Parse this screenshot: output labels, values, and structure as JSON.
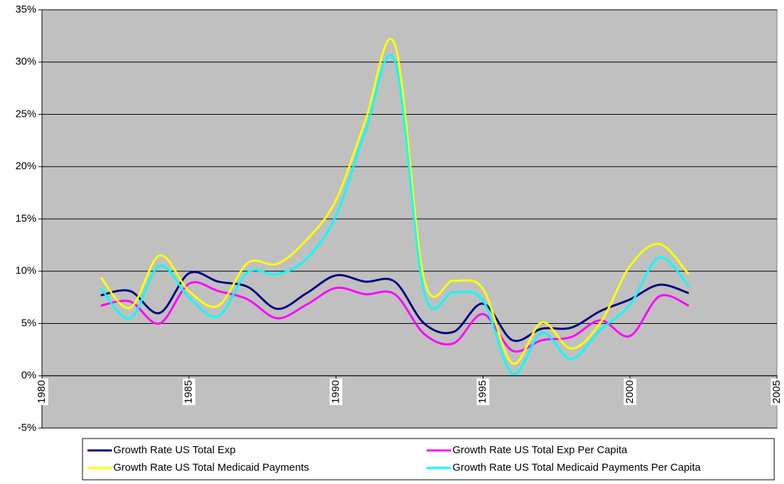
{
  "chart_data": {
    "type": "line",
    "x": [
      1982,
      1983,
      1984,
      1985,
      1986,
      1987,
      1988,
      1989,
      1990,
      1991,
      1992,
      1993,
      1994,
      1995,
      1996,
      1997,
      1998,
      1999,
      2000,
      2001,
      2002
    ],
    "series": [
      {
        "name": "Growth Rate US Total Exp",
        "color": "#000080",
        "values": [
          7.7,
          8.1,
          6.0,
          9.8,
          9.0,
          8.5,
          6.4,
          7.9,
          9.6,
          9.0,
          9.0,
          5.0,
          4.2,
          6.9,
          3.4,
          4.5,
          4.6,
          6.2,
          7.3,
          8.7,
          7.9
        ]
      },
      {
        "name": "Growth Rate US Total Exp Per Capita",
        "color": "#ff00ff",
        "values": [
          6.7,
          7.1,
          5.0,
          8.8,
          8.1,
          7.3,
          5.5,
          6.8,
          8.4,
          7.8,
          7.8,
          4.0,
          3.1,
          5.9,
          2.4,
          3.4,
          3.7,
          5.3,
          3.8,
          7.6,
          6.7
        ]
      },
      {
        "name": "Growth Rate US Total Medicaid Payments",
        "color": "#ffff00",
        "values": [
          9.4,
          6.5,
          11.5,
          8.1,
          6.7,
          10.8,
          10.7,
          13.0,
          16.8,
          24.4,
          31.7,
          9.2,
          9.1,
          8.3,
          1.2,
          5.1,
          2.6,
          5.1,
          10.5,
          12.6,
          9.7
        ]
      },
      {
        "name": "Growth Rate US Total Medicaid Payments Per Capita",
        "color": "#00ffff",
        "values": [
          8.4,
          5.5,
          10.5,
          7.5,
          5.7,
          9.9,
          9.7,
          11.2,
          15.3,
          23.4,
          30.1,
          8.0,
          8.0,
          7.2,
          0.2,
          4.1,
          1.6,
          4.4,
          6.8,
          11.3,
          8.5
        ]
      }
    ],
    "xlim": [
      1980,
      2005
    ],
    "xticks": [
      1980,
      1985,
      1990,
      1995,
      2000,
      2005
    ],
    "ylim": [
      -5,
      35
    ],
    "yticks": [
      {
        "value": -5,
        "label": "-5%"
      },
      {
        "value": 0,
        "label": "0%"
      },
      {
        "value": 5,
        "label": "5%"
      },
      {
        "value": 10,
        "label": "10%"
      },
      {
        "value": 15,
        "label": "15%"
      },
      {
        "value": 20,
        "label": "20%"
      },
      {
        "value": 25,
        "label": "25%"
      },
      {
        "value": 30,
        "label": "30%"
      },
      {
        "value": 35,
        "label": "35%"
      }
    ],
    "grid": true,
    "legend": "bottom"
  }
}
